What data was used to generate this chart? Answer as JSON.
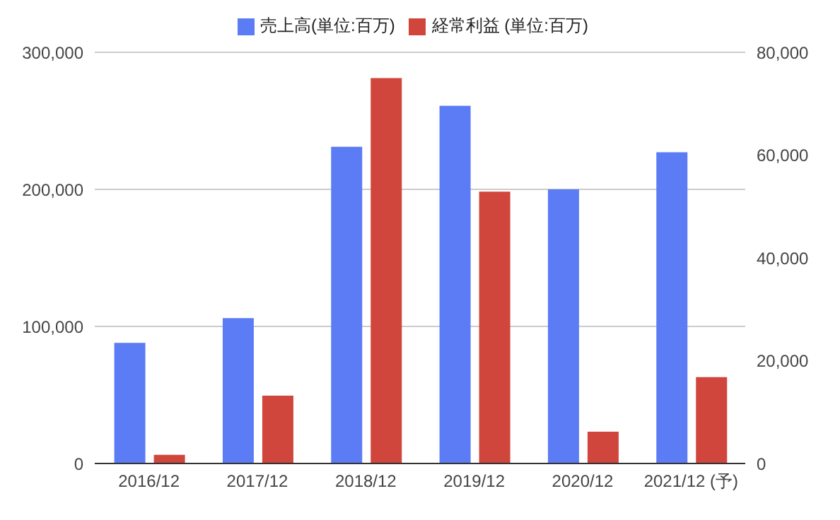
{
  "chart_data": {
    "type": "bar",
    "categories": [
      "2016/12",
      "2017/12",
      "2018/12",
      "2019/12",
      "2020/12",
      "2021/12 (予)"
    ],
    "series": [
      {
        "name": "売上高(単位:百万)",
        "color": "#5b7cf5",
        "values": [
          88000,
          106000,
          231000,
          261000,
          200000,
          227000
        ]
      },
      {
        "name": "経常利益 (単位:百万)",
        "color": "#d0463c",
        "values": [
          1700,
          13200,
          75000,
          52900,
          6200,
          16800
        ],
        "axis": "y2"
      }
    ],
    "ylim": [
      0,
      300000
    ],
    "yticks": [
      {
        "value": 0,
        "label": "0"
      },
      {
        "value": 100000,
        "label": "100,000"
      },
      {
        "value": 200000,
        "label": "200,000"
      },
      {
        "value": 300000,
        "label": "300,000"
      }
    ],
    "y2lim": [
      0,
      80000
    ],
    "y2ticks": [
      {
        "value": 0,
        "label": "0"
      },
      {
        "value": 20000,
        "label": "20,000"
      },
      {
        "value": 40000,
        "label": "40,000"
      },
      {
        "value": 60000,
        "label": "60,000"
      },
      {
        "value": 80000,
        "label": "80,000"
      }
    ],
    "grid": "y",
    "legend": "top"
  }
}
